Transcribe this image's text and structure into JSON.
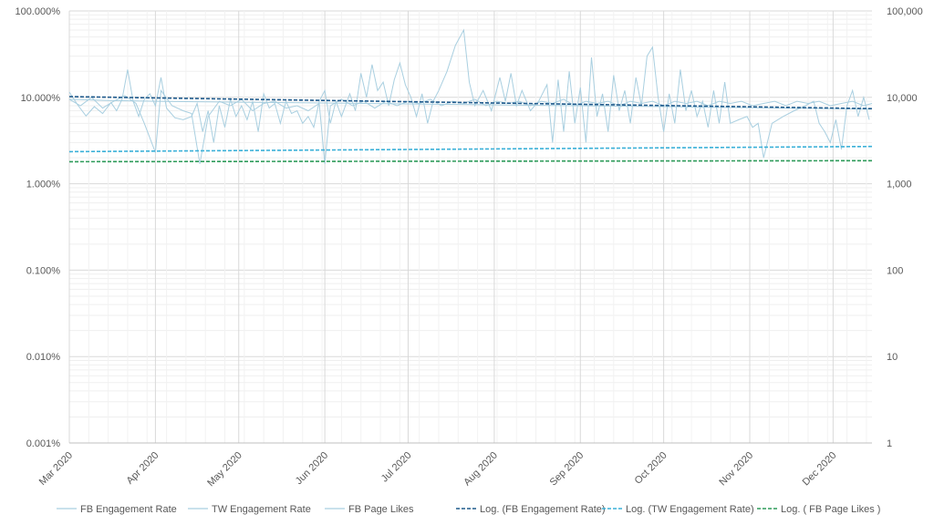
{
  "chart_data": {
    "type": "line",
    "title": "",
    "xlabel": "",
    "ylabel": "",
    "y2label": "",
    "yscale": "log",
    "ylim_pct": [
      0.001,
      100
    ],
    "y_ticks": [
      "100.000%",
      "10.000%",
      "1.000%",
      "0.100%",
      "0.010%",
      "0.001%"
    ],
    "y2scale": "log",
    "y2lim": [
      1,
      100000
    ],
    "y2_ticks": [
      "100,000",
      "10,000",
      "1,000",
      "100",
      "10",
      "1"
    ],
    "xlim": [
      "2020-03-01",
      "2020-12-15"
    ],
    "x_ticks": [
      "Mar 2020",
      "Apr 2020",
      "May 2020",
      "Jun 2020",
      "Jul 2020",
      "Aug 2020",
      "Sep 2020",
      "Oct 2020",
      "Nov 2020",
      "Dec 2020"
    ],
    "grid": true,
    "legend_position": "bottom",
    "colors": {
      "series_light": "#a9cfe0",
      "trend_fb": "#1f5a8c",
      "trend_tw": "#3ab0d8",
      "trend_likes": "#2e9b5a",
      "grid": "#d9d9d9",
      "text": "#595959"
    },
    "series": [
      {
        "name": "FB Engagement Rate",
        "axis": "left",
        "style": "solid",
        "points": [
          [
            "2020-03-01",
            11.5
          ],
          [
            "2020-03-04",
            8.2
          ],
          [
            "2020-03-07",
            6.1
          ],
          [
            "2020-03-10",
            7.8
          ],
          [
            "2020-03-13",
            6.5
          ],
          [
            "2020-03-16",
            8.7
          ],
          [
            "2020-03-18",
            7.0
          ],
          [
            "2020-03-20",
            9.5
          ],
          [
            "2020-03-22",
            21.0
          ],
          [
            "2020-03-24",
            9.0
          ],
          [
            "2020-03-26",
            6.0
          ],
          [
            "2020-03-28",
            9.5
          ],
          [
            "2020-03-30",
            11.0
          ],
          [
            "2020-04-01",
            8.0
          ],
          [
            "2020-04-03",
            17.0
          ],
          [
            "2020-04-05",
            7.5
          ],
          [
            "2020-04-08",
            5.8
          ],
          [
            "2020-04-11",
            5.5
          ],
          [
            "2020-04-14",
            6.0
          ],
          [
            "2020-04-16",
            8.5
          ],
          [
            "2020-04-18",
            4.0
          ],
          [
            "2020-04-20",
            7.0
          ],
          [
            "2020-04-22",
            3.0
          ],
          [
            "2020-04-24",
            8.0
          ],
          [
            "2020-04-26",
            4.5
          ],
          [
            "2020-04-28",
            9.5
          ],
          [
            "2020-04-30",
            6.0
          ],
          [
            "2020-05-02",
            8.0
          ],
          [
            "2020-05-04",
            5.5
          ],
          [
            "2020-05-06",
            9.0
          ],
          [
            "2020-05-08",
            4.0
          ],
          [
            "2020-05-10",
            11.0
          ],
          [
            "2020-05-12",
            7.5
          ],
          [
            "2020-05-14",
            8.5
          ],
          [
            "2020-05-16",
            5.0
          ],
          [
            "2020-05-18",
            9.0
          ],
          [
            "2020-05-20",
            6.5
          ],
          [
            "2020-05-22",
            7.0
          ],
          [
            "2020-05-24",
            5.0
          ],
          [
            "2020-05-26",
            6.0
          ],
          [
            "2020-05-28",
            4.5
          ],
          [
            "2020-05-30",
            9.0
          ],
          [
            "2020-06-01",
            12.0
          ],
          [
            "2020-06-03",
            5.0
          ],
          [
            "2020-06-05",
            9.0
          ],
          [
            "2020-06-07",
            6.0
          ],
          [
            "2020-06-10",
            11.0
          ],
          [
            "2020-06-12",
            7.0
          ],
          [
            "2020-06-14",
            19.0
          ],
          [
            "2020-06-16",
            10.0
          ],
          [
            "2020-06-18",
            24.0
          ],
          [
            "2020-06-20",
            12.0
          ],
          [
            "2020-06-22",
            15.0
          ],
          [
            "2020-06-24",
            8.0
          ],
          [
            "2020-06-26",
            16.0
          ],
          [
            "2020-06-28",
            25.0
          ],
          [
            "2020-06-30",
            14.0
          ],
          [
            "2020-07-02",
            10.0
          ],
          [
            "2020-07-04",
            6.0
          ],
          [
            "2020-07-06",
            11.0
          ],
          [
            "2020-07-08",
            5.0
          ],
          [
            "2020-07-10",
            9.0
          ],
          [
            "2020-07-12",
            12.0
          ],
          [
            "2020-07-15",
            20.0
          ],
          [
            "2020-07-18",
            40.0
          ],
          [
            "2020-07-21",
            60.0
          ],
          [
            "2020-07-23",
            15.0
          ],
          [
            "2020-07-25",
            8.0
          ],
          [
            "2020-07-28",
            12.0
          ],
          [
            "2020-07-31",
            7.0
          ],
          [
            "2020-08-03",
            17.0
          ],
          [
            "2020-08-05",
            9.0
          ],
          [
            "2020-08-07",
            19.0
          ],
          [
            "2020-08-09",
            8.0
          ],
          [
            "2020-08-11",
            12.0
          ],
          [
            "2020-08-14",
            7.0
          ],
          [
            "2020-08-17",
            9.0
          ],
          [
            "2020-08-20",
            14.0
          ],
          [
            "2020-08-22",
            3.0
          ],
          [
            "2020-08-24",
            16.0
          ],
          [
            "2020-08-26",
            4.0
          ],
          [
            "2020-08-28",
            20.0
          ],
          [
            "2020-08-30",
            5.0
          ],
          [
            "2020-09-01",
            13.0
          ],
          [
            "2020-09-03",
            3.0
          ],
          [
            "2020-09-05",
            29.0
          ],
          [
            "2020-09-07",
            6.0
          ],
          [
            "2020-09-09",
            11.0
          ],
          [
            "2020-09-11",
            4.0
          ],
          [
            "2020-09-13",
            18.0
          ],
          [
            "2020-09-15",
            7.0
          ],
          [
            "2020-09-17",
            12.0
          ],
          [
            "2020-09-19",
            5.0
          ],
          [
            "2020-09-21",
            17.0
          ],
          [
            "2020-09-23",
            8.0
          ],
          [
            "2020-09-25",
            30.0
          ],
          [
            "2020-09-27",
            38.0
          ],
          [
            "2020-09-29",
            10.0
          ],
          [
            "2020-10-01",
            4.0
          ],
          [
            "2020-10-03",
            11.0
          ],
          [
            "2020-10-05",
            5.0
          ],
          [
            "2020-10-07",
            21.0
          ],
          [
            "2020-10-09",
            7.0
          ],
          [
            "2020-10-11",
            12.0
          ],
          [
            "2020-10-13",
            6.0
          ],
          [
            "2020-10-15",
            9.0
          ],
          [
            "2020-10-17",
            4.5
          ],
          [
            "2020-10-19",
            12.0
          ],
          [
            "2020-10-21",
            5.0
          ],
          [
            "2020-10-23",
            15.0
          ],
          [
            "2020-10-25",
            5.0
          ],
          [
            "2020-10-28",
            5.5
          ],
          [
            "2020-10-31",
            6.0
          ],
          [
            "2020-11-02",
            4.5
          ],
          [
            "2020-11-04",
            5.0
          ],
          [
            "2020-11-06",
            2.0
          ],
          [
            "2020-11-09",
            5.0
          ],
          [
            "2020-11-13",
            6.0
          ],
          [
            "2020-11-17",
            7.0
          ],
          [
            "2020-11-21",
            8.0
          ],
          [
            "2020-11-24",
            9.0
          ],
          [
            "2020-11-26",
            5.0
          ],
          [
            "2020-11-28",
            4.0
          ],
          [
            "2020-11-30",
            3.0
          ],
          [
            "2020-12-02",
            5.5
          ],
          [
            "2020-12-04",
            2.5
          ],
          [
            "2020-12-06",
            8.0
          ],
          [
            "2020-12-08",
            12.0
          ],
          [
            "2020-12-10",
            6.0
          ],
          [
            "2020-12-12",
            10.0
          ],
          [
            "2020-12-14",
            5.5
          ]
        ]
      },
      {
        "name": "TW Engagement Rate",
        "axis": "left",
        "style": "solid",
        "points": [
          [
            "2020-03-01",
            9.5
          ],
          [
            "2020-03-05",
            8.0
          ],
          [
            "2020-03-09",
            10.0
          ],
          [
            "2020-03-13",
            7.5
          ],
          [
            "2020-03-17",
            9.0
          ],
          [
            "2020-03-21",
            10.5
          ],
          [
            "2020-03-25",
            8.5
          ],
          [
            "2020-03-28",
            5.0
          ],
          [
            "2020-04-01",
            2.3
          ],
          [
            "2020-04-03",
            12.0
          ],
          [
            "2020-04-07",
            8.0
          ],
          [
            "2020-04-11",
            7.0
          ],
          [
            "2020-04-14",
            6.5
          ],
          [
            "2020-04-17",
            1.7
          ],
          [
            "2020-04-20",
            6.0
          ],
          [
            "2020-04-24",
            9.0
          ],
          [
            "2020-04-28",
            8.0
          ],
          [
            "2020-05-02",
            9.5
          ],
          [
            "2020-05-06",
            7.0
          ],
          [
            "2020-05-10",
            8.5
          ],
          [
            "2020-05-14",
            9.0
          ],
          [
            "2020-05-18",
            7.5
          ],
          [
            "2020-05-22",
            8.0
          ],
          [
            "2020-05-26",
            7.0
          ],
          [
            "2020-05-30",
            8.5
          ],
          [
            "2020-06-01",
            1.7
          ],
          [
            "2020-06-03",
            8.0
          ],
          [
            "2020-06-07",
            9.5
          ],
          [
            "2020-06-11",
            8.0
          ],
          [
            "2020-06-15",
            9.0
          ],
          [
            "2020-06-19",
            7.5
          ],
          [
            "2020-06-23",
            9.0
          ],
          [
            "2020-06-27",
            8.0
          ],
          [
            "2020-07-01",
            9.0
          ],
          [
            "2020-07-05",
            8.5
          ],
          [
            "2020-07-09",
            9.5
          ],
          [
            "2020-07-13",
            8.0
          ],
          [
            "2020-07-17",
            9.0
          ],
          [
            "2020-07-21",
            8.5
          ],
          [
            "2020-07-25",
            9.5
          ],
          [
            "2020-07-29",
            8.0
          ],
          [
            "2020-08-02",
            9.0
          ],
          [
            "2020-08-06",
            8.5
          ],
          [
            "2020-08-10",
            9.0
          ],
          [
            "2020-08-14",
            8.0
          ],
          [
            "2020-08-18",
            9.0
          ],
          [
            "2020-08-22",
            8.5
          ],
          [
            "2020-08-26",
            9.5
          ],
          [
            "2020-08-30",
            8.0
          ],
          [
            "2020-09-03",
            9.0
          ],
          [
            "2020-09-07",
            8.5
          ],
          [
            "2020-09-11",
            9.0
          ],
          [
            "2020-09-15",
            8.0
          ],
          [
            "2020-09-19",
            9.0
          ],
          [
            "2020-09-23",
            8.5
          ],
          [
            "2020-09-27",
            9.0
          ],
          [
            "2020-10-01",
            8.0
          ],
          [
            "2020-10-05",
            9.0
          ],
          [
            "2020-10-09",
            8.5
          ],
          [
            "2020-10-13",
            9.0
          ],
          [
            "2020-10-17",
            8.0
          ],
          [
            "2020-10-21",
            9.0
          ],
          [
            "2020-10-25",
            8.5
          ],
          [
            "2020-10-29",
            9.0
          ],
          [
            "2020-11-02",
            8.0
          ],
          [
            "2020-11-06",
            8.5
          ],
          [
            "2020-11-10",
            9.0
          ],
          [
            "2020-11-14",
            8.0
          ],
          [
            "2020-11-18",
            9.0
          ],
          [
            "2020-11-22",
            8.5
          ],
          [
            "2020-11-26",
            9.0
          ],
          [
            "2020-11-30",
            8.0
          ],
          [
            "2020-12-04",
            8.5
          ],
          [
            "2020-12-08",
            9.0
          ],
          [
            "2020-12-12",
            8.0
          ],
          [
            "2020-12-15",
            8.5
          ]
        ]
      },
      {
        "name": "FB Page Likes",
        "axis": "right",
        "style": "solid",
        "points": [
          [
            "2020-03-01",
            9500
          ],
          [
            "2020-03-15",
            9200
          ],
          [
            "2020-04-01",
            9000
          ],
          [
            "2020-04-15",
            8900
          ],
          [
            "2020-05-01",
            8800
          ],
          [
            "2020-05-15",
            8700
          ],
          [
            "2020-06-01",
            8600
          ],
          [
            "2020-06-15",
            8500
          ],
          [
            "2020-07-01",
            8400
          ],
          [
            "2020-07-15",
            8300
          ],
          [
            "2020-08-01",
            8200
          ],
          [
            "2020-08-15",
            8100
          ],
          [
            "2020-09-01",
            8000
          ],
          [
            "2020-09-15",
            7900
          ],
          [
            "2020-10-01",
            7800
          ],
          [
            "2020-10-15",
            7700
          ],
          [
            "2020-11-01",
            7600
          ],
          [
            "2020-11-15",
            7500
          ],
          [
            "2020-12-01",
            7400
          ],
          [
            "2020-12-15",
            7300
          ]
        ]
      },
      {
        "name": "Log. (FB Engagement Rate)",
        "axis": "left",
        "style": "dashed",
        "points": [
          [
            "2020-03-01",
            10.2
          ],
          [
            "2020-12-15",
            7.4
          ]
        ]
      },
      {
        "name": "Log. (TW Engagement Rate)",
        "axis": "left",
        "style": "dashed",
        "points": [
          [
            "2020-03-01",
            2.35
          ],
          [
            "2020-12-15",
            2.7
          ]
        ]
      },
      {
        "name": "Log. ( FB Page Likes )",
        "axis": "right",
        "style": "dashed",
        "points": [
          [
            "2020-03-01",
            1800
          ],
          [
            "2020-12-15",
            1850
          ]
        ]
      }
    ]
  }
}
